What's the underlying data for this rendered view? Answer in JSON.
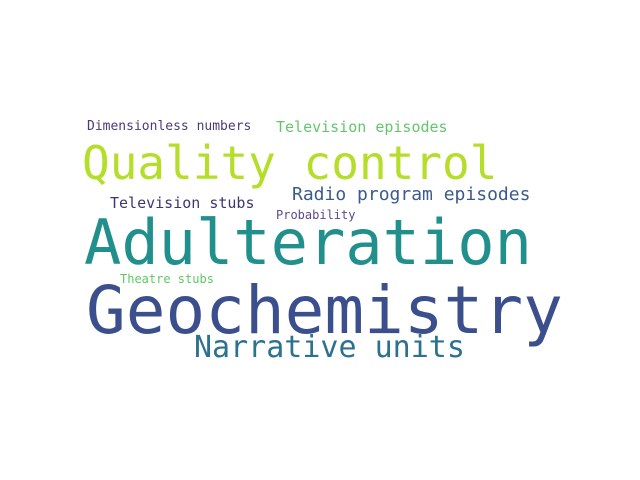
{
  "wordcloud": {
    "words": [
      {
        "text": "Dimensionless numbers",
        "color": "#4a3a7a"
      },
      {
        "text": "Television episodes",
        "color": "#63c76a"
      },
      {
        "text": "Quality control",
        "color": "#b5de2b"
      },
      {
        "text": "Radio program episodes",
        "color": "#3b5b8a"
      },
      {
        "text": "Television stubs",
        "color": "#3e3671"
      },
      {
        "text": "Probability",
        "color": "#5a4a8c"
      },
      {
        "text": "Adulteration",
        "color": "#21908c"
      },
      {
        "text": "Theatre stubs",
        "color": "#5ec962"
      },
      {
        "text": "Geochemistry",
        "color": "#3b4f8c"
      },
      {
        "text": "Narrative units",
        "color": "#2c728e"
      }
    ]
  }
}
